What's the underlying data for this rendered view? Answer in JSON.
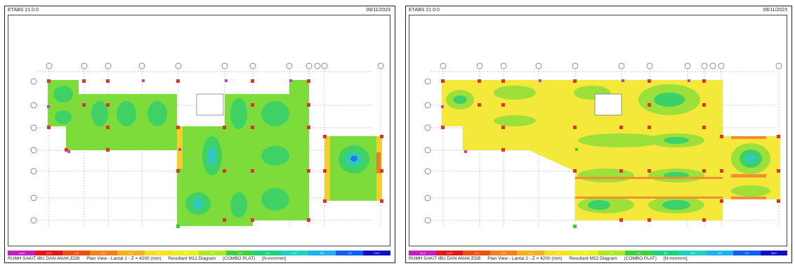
{
  "panels": [
    {
      "app_title": "ETABS 21.0.0",
      "date": "09/11/2023",
      "footer_file": "RUMH SAKIT IBU DAN ANAK.EDB",
      "footer_view": "Plan View - Lantai 2 - Z = 4200 (mm)",
      "footer_result": "Resultant M11 Diagram",
      "footer_combo": "(COMBO PLAT)",
      "footer_units": "[N-mm/mm]"
    },
    {
      "app_title": "ETABS 21.0.0",
      "date": "09/11/2023",
      "footer_file": "RUMH SAKIT IBU DAN ANAK.EDB",
      "footer_view": "Plan View - Lantai 2 - Z = 4200 (mm)",
      "footer_result": "Resultant M22 Diagram",
      "footer_combo": "(COMBO PLAT)",
      "footer_units": "[N-mm/mm]"
    }
  ],
  "legend": {
    "colors": [
      "#c020c0",
      "#e01818",
      "#e85010",
      "#f08020",
      "#f4b020",
      "#f8e020",
      "#e8f020",
      "#b0e820",
      "#40d040",
      "#20d080",
      "#20d0c0",
      "#20b0f0",
      "#1060f0",
      "#1010c0"
    ],
    "ticks": [
      "-14.0",
      "-10.0",
      "-7.5",
      "-6.0",
      "-4.5",
      "-3.0",
      "-1.5",
      "0.0",
      "1.5",
      "3.0",
      "4.5",
      "6.0",
      "7.5",
      "10.0"
    ]
  }
}
